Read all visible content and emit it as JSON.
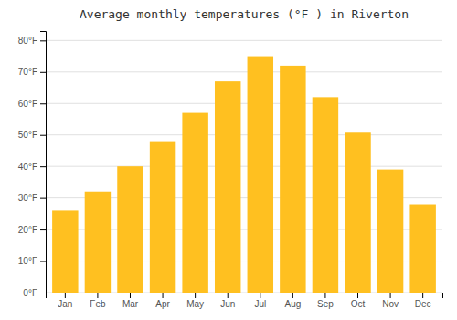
{
  "chart_data": {
    "type": "bar",
    "title": "Average monthly temperatures (°F ) in Riverton",
    "categories": [
      "Jan",
      "Feb",
      "Mar",
      "Apr",
      "May",
      "Jun",
      "Jul",
      "Aug",
      "Sep",
      "Oct",
      "Nov",
      "Dec"
    ],
    "values": [
      26,
      32,
      40,
      48,
      57,
      67,
      75,
      72,
      62,
      51,
      39,
      28
    ],
    "color": "#FFC020",
    "ylim": [
      0,
      83
    ],
    "yticks": [
      {
        "value": 0,
        "label": "0°F"
      },
      {
        "value": 10,
        "label": "10°F"
      },
      {
        "value": 20,
        "label": "20°F"
      },
      {
        "value": 30,
        "label": "30°F"
      },
      {
        "value": 40,
        "label": "40°F"
      },
      {
        "value": 50,
        "label": "50°F"
      },
      {
        "value": 60,
        "label": "60°F"
      },
      {
        "value": 70,
        "label": "70°F"
      },
      {
        "value": 80,
        "label": "80°F"
      }
    ],
    "grid": true
  }
}
